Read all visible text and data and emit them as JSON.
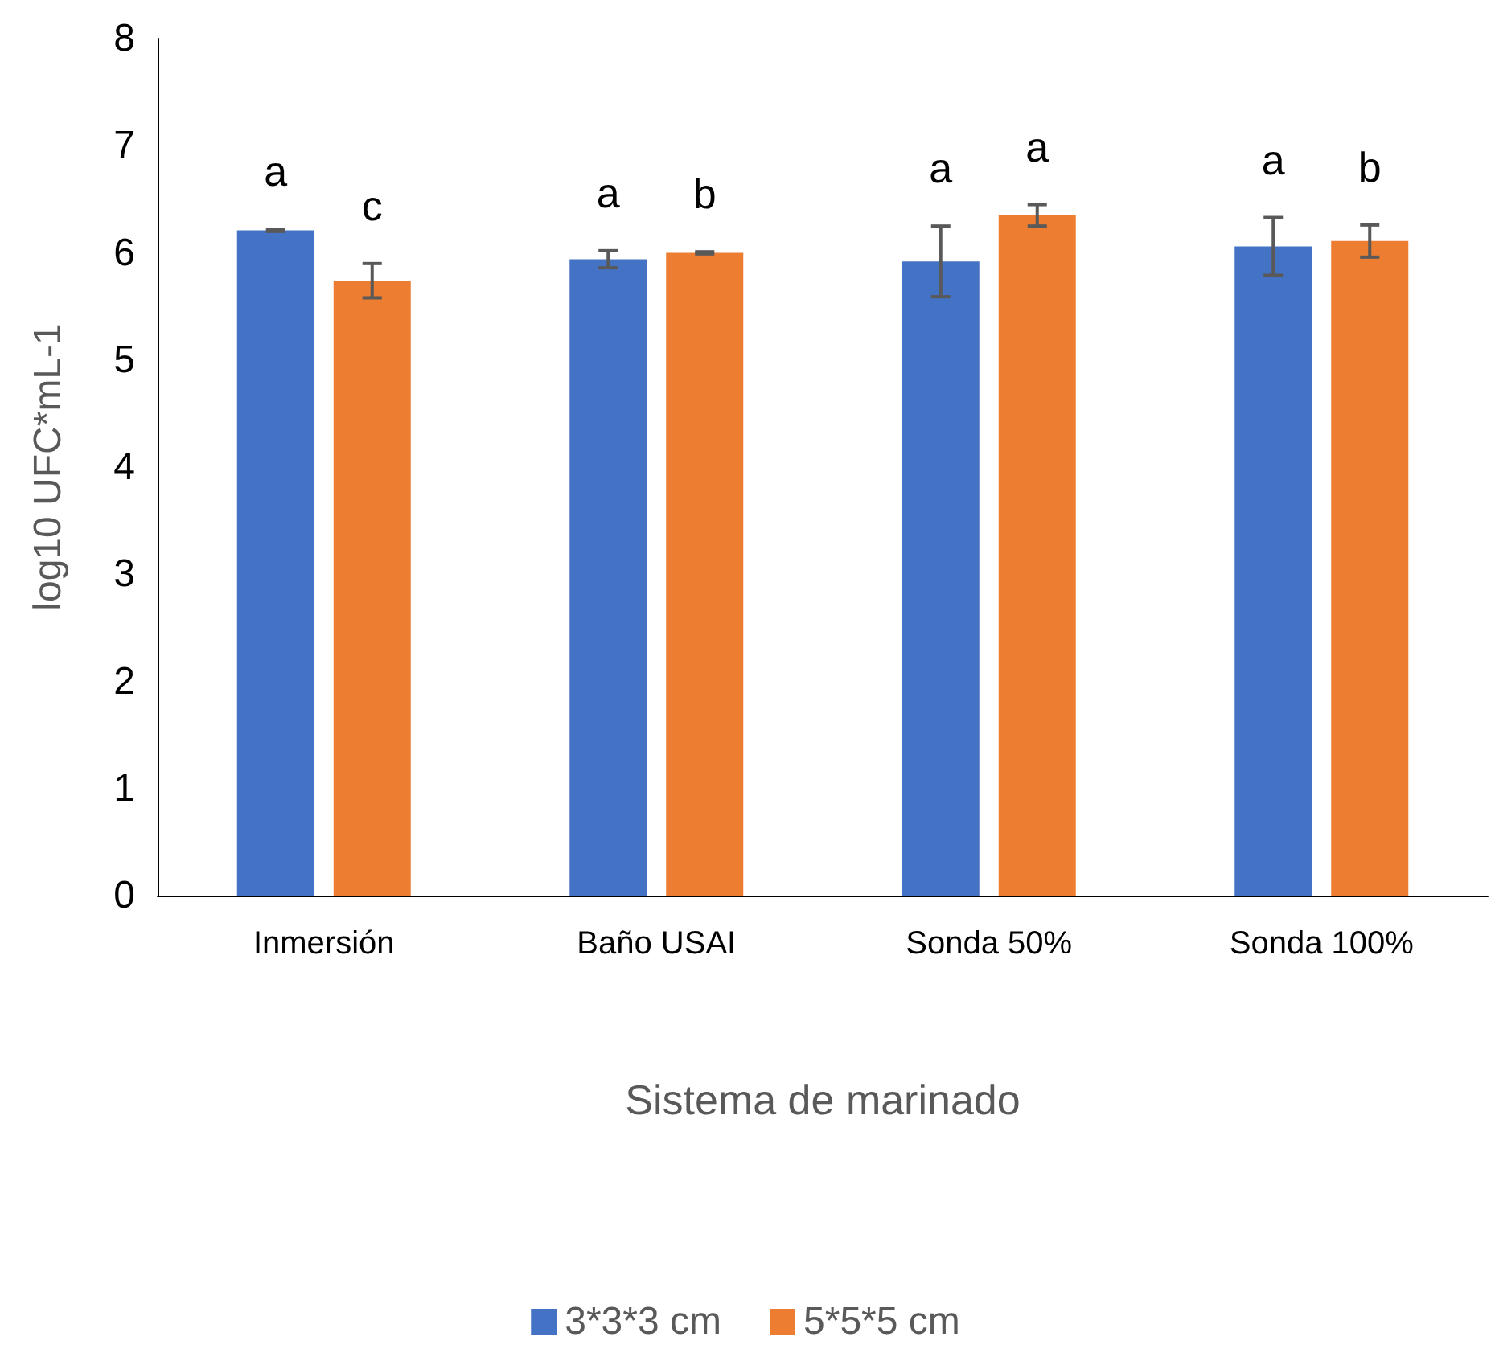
{
  "chart_data": {
    "type": "bar",
    "xlabel": "Sistema de marinado",
    "ylabel": "log10 UFC*mL-1",
    "categories": [
      "Inmersión",
      "Baño USAI",
      "Sonda 50%",
      "Sonda 100%"
    ],
    "series": [
      {
        "name": "3*3*3 cm",
        "color": "#4472c4",
        "values": [
          6.21,
          5.94,
          5.92,
          6.06
        ],
        "errors": [
          0.01,
          0.08,
          0.33,
          0.27
        ]
      },
      {
        "name": "5*5*5 cm",
        "color": "#ed7d31",
        "values": [
          5.74,
          6.0,
          6.35,
          6.11
        ],
        "errors": [
          0.16,
          0.01,
          0.1,
          0.15
        ]
      }
    ],
    "ylim": [
      0,
      8
    ],
    "yticks": [
      0,
      1,
      2,
      3,
      4,
      5,
      6,
      7,
      8
    ],
    "grid": false,
    "legend": "bottom",
    "annotations": [
      "a",
      "c",
      "a",
      "b",
      "a",
      "a",
      "a",
      "b"
    ]
  }
}
